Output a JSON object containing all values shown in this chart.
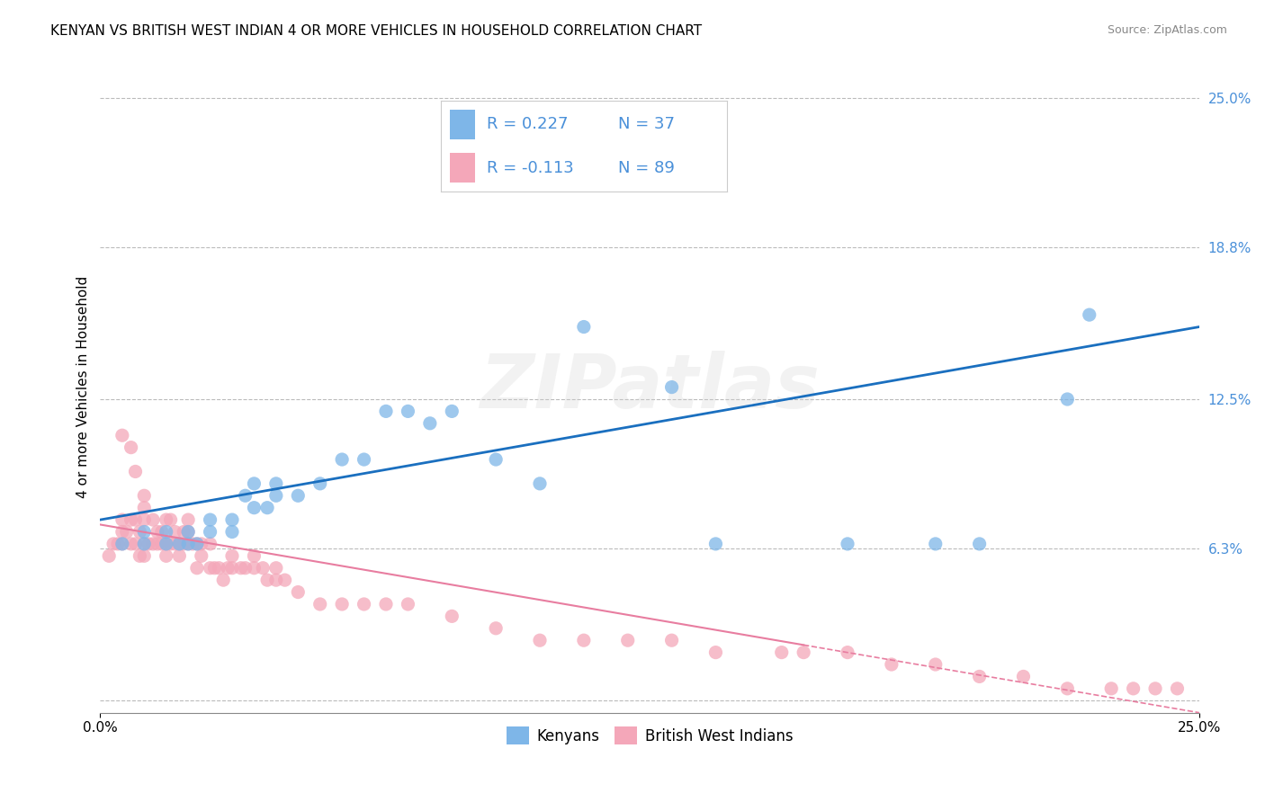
{
  "title": "KENYAN VS BRITISH WEST INDIAN 4 OR MORE VEHICLES IN HOUSEHOLD CORRELATION CHART",
  "source": "Source: ZipAtlas.com",
  "ylabel": "4 or more Vehicles in Household",
  "xlim": [
    0.0,
    0.25
  ],
  "ylim": [
    -0.005,
    0.265
  ],
  "ytick_positions": [
    0.0,
    0.063,
    0.125,
    0.188,
    0.25
  ],
  "ytick_labels": [
    "",
    "6.3%",
    "12.5%",
    "18.8%",
    "25.0%"
  ],
  "kenyan_R": 0.227,
  "kenyan_N": 37,
  "bwi_R": -0.113,
  "bwi_N": 89,
  "kenyan_color": "#7EB6E8",
  "bwi_color": "#F4A7B9",
  "kenyan_line_color": "#1A6FBF",
  "bwi_line_color": "#E87DA0",
  "background_color": "#FFFFFF",
  "grid_color": "#BBBBBB",
  "title_fontsize": 11,
  "label_fontsize": 11,
  "tick_fontsize": 11,
  "legend_fontsize": 13,
  "watermark": "ZIPatlas",
  "kenyan_x": [
    0.005,
    0.01,
    0.01,
    0.015,
    0.015,
    0.018,
    0.02,
    0.02,
    0.022,
    0.025,
    0.025,
    0.03,
    0.03,
    0.033,
    0.035,
    0.035,
    0.038,
    0.04,
    0.04,
    0.045,
    0.05,
    0.055,
    0.06,
    0.065,
    0.07,
    0.075,
    0.08,
    0.09,
    0.1,
    0.11,
    0.13,
    0.14,
    0.17,
    0.19,
    0.2,
    0.22,
    0.225
  ],
  "kenyan_y": [
    0.065,
    0.065,
    0.07,
    0.065,
    0.07,
    0.065,
    0.065,
    0.07,
    0.065,
    0.07,
    0.075,
    0.075,
    0.07,
    0.085,
    0.08,
    0.09,
    0.08,
    0.085,
    0.09,
    0.085,
    0.09,
    0.1,
    0.1,
    0.12,
    0.12,
    0.115,
    0.12,
    0.1,
    0.09,
    0.155,
    0.13,
    0.065,
    0.065,
    0.065,
    0.065,
    0.125,
    0.16
  ],
  "bwi_x": [
    0.002,
    0.003,
    0.004,
    0.005,
    0.005,
    0.005,
    0.006,
    0.007,
    0.007,
    0.008,
    0.008,
    0.009,
    0.009,
    0.01,
    0.01,
    0.01,
    0.01,
    0.011,
    0.012,
    0.012,
    0.013,
    0.013,
    0.014,
    0.014,
    0.015,
    0.015,
    0.015,
    0.016,
    0.016,
    0.017,
    0.017,
    0.018,
    0.018,
    0.019,
    0.019,
    0.02,
    0.02,
    0.02,
    0.021,
    0.022,
    0.022,
    0.023,
    0.023,
    0.025,
    0.025,
    0.026,
    0.027,
    0.028,
    0.029,
    0.03,
    0.03,
    0.032,
    0.033,
    0.035,
    0.035,
    0.037,
    0.038,
    0.04,
    0.04,
    0.042,
    0.045,
    0.05,
    0.055,
    0.06,
    0.065,
    0.07,
    0.08,
    0.09,
    0.1,
    0.11,
    0.12,
    0.13,
    0.14,
    0.155,
    0.16,
    0.17,
    0.18,
    0.19,
    0.2,
    0.21,
    0.22,
    0.23,
    0.235,
    0.24,
    0.245,
    0.005,
    0.007,
    0.008,
    0.01
  ],
  "bwi_y": [
    0.06,
    0.065,
    0.065,
    0.075,
    0.07,
    0.065,
    0.07,
    0.075,
    0.065,
    0.075,
    0.065,
    0.06,
    0.07,
    0.08,
    0.075,
    0.065,
    0.06,
    0.065,
    0.075,
    0.065,
    0.065,
    0.07,
    0.065,
    0.07,
    0.075,
    0.065,
    0.06,
    0.075,
    0.065,
    0.065,
    0.07,
    0.065,
    0.06,
    0.065,
    0.07,
    0.065,
    0.07,
    0.075,
    0.065,
    0.065,
    0.055,
    0.06,
    0.065,
    0.055,
    0.065,
    0.055,
    0.055,
    0.05,
    0.055,
    0.055,
    0.06,
    0.055,
    0.055,
    0.06,
    0.055,
    0.055,
    0.05,
    0.055,
    0.05,
    0.05,
    0.045,
    0.04,
    0.04,
    0.04,
    0.04,
    0.04,
    0.035,
    0.03,
    0.025,
    0.025,
    0.025,
    0.025,
    0.02,
    0.02,
    0.02,
    0.02,
    0.015,
    0.015,
    0.01,
    0.01,
    0.005,
    0.005,
    0.005,
    0.005,
    0.005,
    0.11,
    0.105,
    0.095,
    0.085
  ],
  "blue_line_x0": 0.0,
  "blue_line_y0": 0.075,
  "blue_line_x1": 0.25,
  "blue_line_y1": 0.155,
  "pink_line_x0": 0.0,
  "pink_line_y0": 0.073,
  "pink_line_x1": 0.25,
  "pink_line_y1": -0.005
}
